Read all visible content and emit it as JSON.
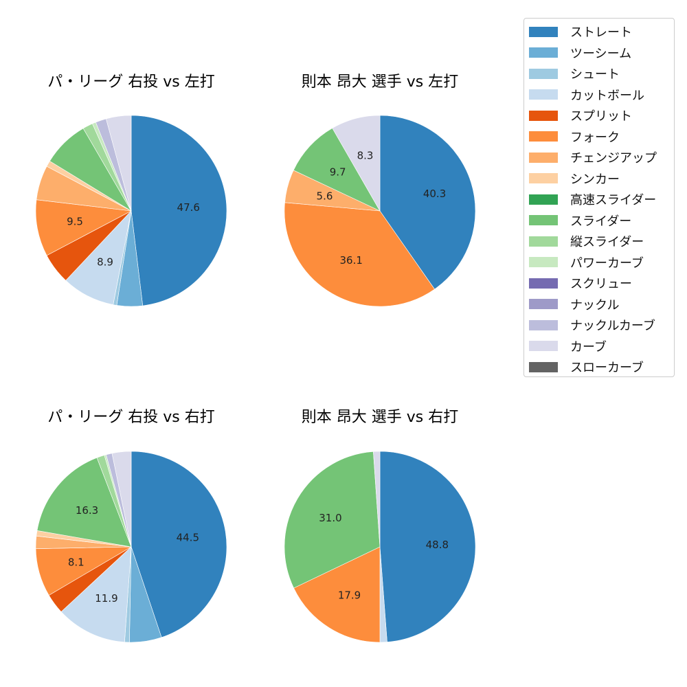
{
  "legend": [
    {
      "name": "ストレート",
      "color": "#3182bd"
    },
    {
      "name": "ツーシーム",
      "color": "#6baed6"
    },
    {
      "name": "シュート",
      "color": "#9ecae1"
    },
    {
      "name": "カットボール",
      "color": "#c6dbef"
    },
    {
      "name": "スプリット",
      "color": "#e6550d"
    },
    {
      "name": "フォーク",
      "color": "#fd8d3c"
    },
    {
      "name": "チェンジアップ",
      "color": "#fdae6b"
    },
    {
      "name": "シンカー",
      "color": "#fdd0a2"
    },
    {
      "name": "高速スライダー",
      "color": "#31a354"
    },
    {
      "name": "スライダー",
      "color": "#74c476"
    },
    {
      "name": "縦スライダー",
      "color": "#a1d99b"
    },
    {
      "name": "パワーカーブ",
      "color": "#c7e9c0"
    },
    {
      "name": "スクリュー",
      "color": "#756bb1"
    },
    {
      "name": "ナックル",
      "color": "#9e9ac8"
    },
    {
      "name": "ナックルカーブ",
      "color": "#bcbddc"
    },
    {
      "name": "カーブ",
      "color": "#dadaeb"
    },
    {
      "name": "スローカーブ",
      "color": "#636363"
    }
  ],
  "chart_data": [
    {
      "type": "pie",
      "title": "パ・リーグ 右投 vs 左打",
      "slices": [
        {
          "name": "ストレート",
          "value": 47.6,
          "label": "47.6"
        },
        {
          "name": "ツーシーム",
          "value": 4.3,
          "label": ""
        },
        {
          "name": "シュート",
          "value": 0.6,
          "label": ""
        },
        {
          "name": "カットボール",
          "value": 8.9,
          "label": "8.9"
        },
        {
          "name": "スプリット",
          "value": 5.2,
          "label": ""
        },
        {
          "name": "フォーク",
          "value": 9.5,
          "label": "9.5"
        },
        {
          "name": "チェンジアップ",
          "value": 5.8,
          "label": ""
        },
        {
          "name": "シンカー",
          "value": 1.0,
          "label": ""
        },
        {
          "name": "スライダー",
          "value": 7.8,
          "label": ""
        },
        {
          "name": "縦スライダー",
          "value": 1.7,
          "label": ""
        },
        {
          "name": "パワーカーブ",
          "value": 0.6,
          "label": ""
        },
        {
          "name": "ナックルカーブ",
          "value": 1.8,
          "label": ""
        },
        {
          "name": "カーブ",
          "value": 4.2,
          "label": ""
        }
      ]
    },
    {
      "type": "pie",
      "title": "則本 昂大 選手 vs 左打",
      "slices": [
        {
          "name": "ストレート",
          "value": 40.3,
          "label": "40.3"
        },
        {
          "name": "フォーク",
          "value": 36.1,
          "label": "36.1"
        },
        {
          "name": "チェンジアップ",
          "value": 5.6,
          "label": "5.6"
        },
        {
          "name": "スライダー",
          "value": 9.7,
          "label": "9.7"
        },
        {
          "name": "カーブ",
          "value": 8.3,
          "label": "8.3"
        }
      ]
    },
    {
      "type": "pie",
      "title": "パ・リーグ 右投 vs 右打",
      "slices": [
        {
          "name": "ストレート",
          "value": 44.5,
          "label": "44.5"
        },
        {
          "name": "ツーシーム",
          "value": 5.4,
          "label": ""
        },
        {
          "name": "シュート",
          "value": 0.8,
          "label": ""
        },
        {
          "name": "カットボール",
          "value": 11.9,
          "label": "11.9"
        },
        {
          "name": "スプリット",
          "value": 3.4,
          "label": ""
        },
        {
          "name": "フォーク",
          "value": 8.1,
          "label": "8.1"
        },
        {
          "name": "チェンジアップ",
          "value": 2.1,
          "label": ""
        },
        {
          "name": "シンカー",
          "value": 0.9,
          "label": ""
        },
        {
          "name": "スライダー",
          "value": 16.3,
          "label": "16.3"
        },
        {
          "name": "縦スライダー",
          "value": 1.3,
          "label": ""
        },
        {
          "name": "パワーカーブ",
          "value": 0.3,
          "label": ""
        },
        {
          "name": "ナックルカーブ",
          "value": 1.0,
          "label": ""
        },
        {
          "name": "カーブ",
          "value": 3.2,
          "label": ""
        }
      ]
    },
    {
      "type": "pie",
      "title": "則本 昂大 選手 vs 右打",
      "slices": [
        {
          "name": "ストレート",
          "value": 48.8,
          "label": "48.8"
        },
        {
          "name": "カットボール",
          "value": 1.2,
          "label": ""
        },
        {
          "name": "フォーク",
          "value": 17.9,
          "label": "17.9"
        },
        {
          "name": "スライダー",
          "value": 31.0,
          "label": "31.0"
        },
        {
          "name": "カーブ",
          "value": 1.1,
          "label": ""
        }
      ]
    }
  ]
}
